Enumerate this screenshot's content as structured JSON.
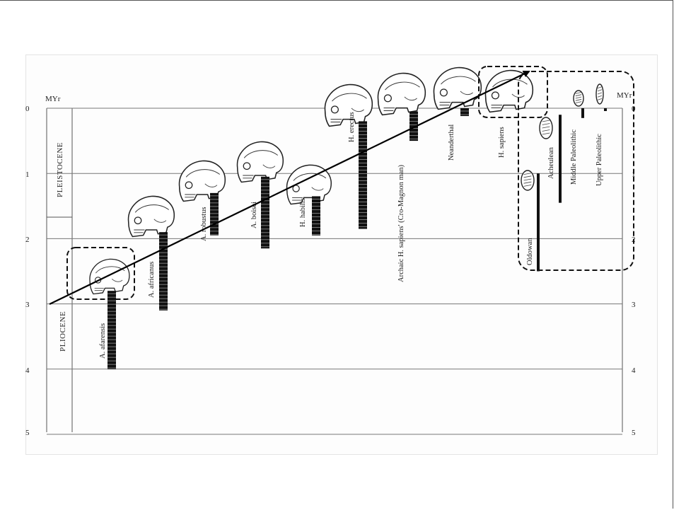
{
  "axis": {
    "unit_left": "MYr",
    "unit_right": "MYr",
    "ticks_left": [
      "0",
      "1",
      "2",
      "3",
      "4",
      "5"
    ],
    "ticks_right": [
      "0",
      "1",
      "2",
      "3",
      "4",
      "5"
    ]
  },
  "eras": [
    {
      "name": "PLEISTOCENE"
    },
    {
      "name": "PLIOCENE"
    }
  ],
  "hominins": [
    {
      "label": "A. afarensis",
      "range_myr": [
        2.8,
        4.0
      ]
    },
    {
      "label": "A. africanus",
      "range_myr": [
        1.9,
        3.1
      ]
    },
    {
      "label": "A. robustus",
      "range_myr": [
        1.3,
        1.95
      ]
    },
    {
      "label": "A. boisei",
      "range_myr": [
        1.05,
        2.15
      ]
    },
    {
      "label": "H. habilis",
      "range_myr": [
        1.35,
        1.95
      ]
    },
    {
      "label": "H. erectus",
      "range_myr": [
        0.2,
        1.85
      ]
    },
    {
      "label": "Archaic H. sapiens' (Cro-Magnon man)",
      "range_myr": [
        0.05,
        0.5
      ]
    },
    {
      "label": "Neanderthal",
      "range_myr": [
        0.0,
        0.12
      ]
    },
    {
      "label": "H. sapiens",
      "range_myr": [
        0.0,
        0.0
      ]
    }
  ],
  "tool_industries": [
    {
      "label": "Oldowan",
      "range_myr": [
        1.0,
        2.5
      ]
    },
    {
      "label": "Acheulean",
      "range_myr": [
        0.1,
        1.45
      ]
    },
    {
      "label": "Middle Paleolithic",
      "range_myr": [
        0.0,
        0.15
      ]
    },
    {
      "label": "Upper Paleolithic",
      "range_myr": [
        0.0,
        0.04
      ]
    }
  ],
  "colors": {
    "range_bar": "#111111",
    "grid_line": "#777777",
    "highlight_box": "#111111",
    "arrow": "#000000"
  },
  "icons": [
    "hominin-skull-icon",
    "stone-tool-icon"
  ]
}
